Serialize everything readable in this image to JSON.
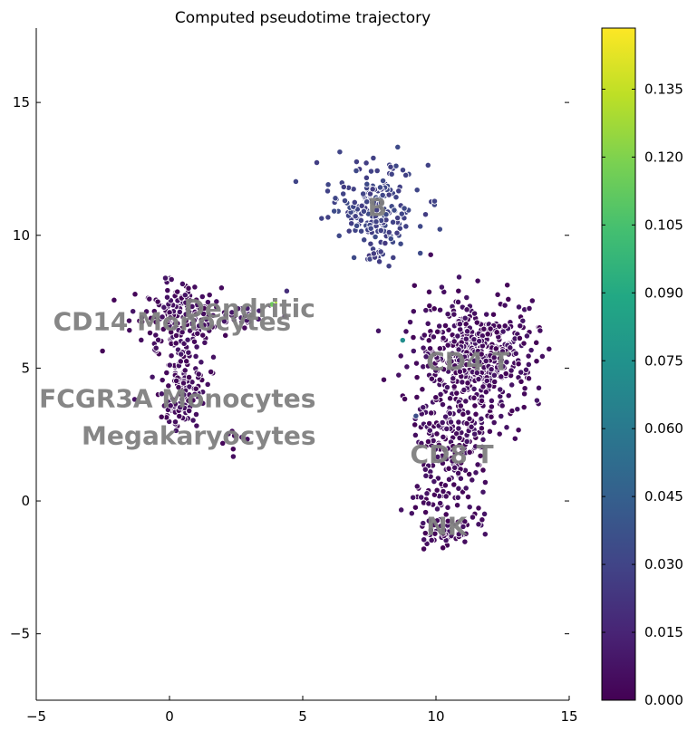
{
  "chart_data": {
    "type": "scatter",
    "title": "Computed pseudotime trajectory",
    "xlabel": "",
    "ylabel": "",
    "xlim": [
      -5,
      15
    ],
    "ylim": [
      -7.5,
      17.8
    ],
    "x_ticks": [
      -5,
      0,
      5,
      10,
      15
    ],
    "x_tick_labels": [
      "−5",
      "0",
      "5",
      "10",
      "15"
    ],
    "y_ticks": [
      -5,
      0,
      5,
      10,
      15
    ],
    "y_tick_labels": [
      "−5",
      "0",
      "5",
      "10",
      "15"
    ],
    "grid": false,
    "colormap": "viridis",
    "colorbar": {
      "min": 0.0,
      "max": 0.1485,
      "ticks": [
        0.0,
        0.015,
        0.03,
        0.045,
        0.06,
        0.075,
        0.09,
        0.105,
        0.12,
        0.135
      ],
      "tick_labels": [
        "0.000",
        "0.015",
        "0.030",
        "0.045",
        "0.060",
        "0.075",
        "0.090",
        "0.105",
        "0.120",
        "0.135"
      ]
    },
    "point_edge_color": "#ffffff",
    "label_color": "#7f7f7f",
    "cluster_labels": [
      {
        "text": "B",
        "x": 7.8,
        "y": 11.0
      },
      {
        "text": "Dendritic",
        "x": 3.0,
        "y": 7.2
      },
      {
        "text": "CD14 Monocytes",
        "x": 0.1,
        "y": 6.7
      },
      {
        "text": "CD4 T",
        "x": 11.2,
        "y": 5.2
      },
      {
        "text": "FCGR3A Monocytes",
        "x": 0.3,
        "y": 3.8
      },
      {
        "text": "Megakaryocytes",
        "x": 1.1,
        "y": 2.4
      },
      {
        "text": "CD8 T",
        "x": 10.6,
        "y": 1.7
      },
      {
        "text": "NK",
        "x": 10.4,
        "y": -1.0
      }
    ],
    "series": [
      {
        "x": 7.7,
        "y": 11.1,
        "sx": 0.85,
        "sy": 0.8,
        "count": 190,
        "value": 0.03,
        "value_spread": 0.004
      },
      {
        "x": 7.8,
        "y": 9.6,
        "sx": 0.25,
        "sy": 0.6,
        "count": 20,
        "value": 0.028,
        "value_spread": 0.004
      },
      {
        "x": 0.2,
        "y": 6.8,
        "sx": 0.8,
        "sy": 0.75,
        "count": 180,
        "value": 0.005,
        "value_spread": 0.004
      },
      {
        "x": 0.5,
        "y": 4.5,
        "sx": 0.45,
        "sy": 0.8,
        "count": 90,
        "value": 0.005,
        "value_spread": 0.004
      },
      {
        "x": 0.3,
        "y": 3.4,
        "sx": 0.35,
        "sy": 0.25,
        "count": 35,
        "value": 0.005,
        "value_spread": 0.004
      },
      {
        "x": 2.8,
        "y": 7.0,
        "sx": 0.55,
        "sy": 0.2,
        "count": 25,
        "value": 0.008,
        "value_spread": 0.004
      },
      {
        "x": 2.4,
        "y": 2.4,
        "sx": 0.25,
        "sy": 0.25,
        "count": 10,
        "value": 0.004,
        "value_spread": 0.002
      },
      {
        "x": 11.5,
        "y": 5.4,
        "sx": 1.1,
        "sy": 1.1,
        "count": 520,
        "value": 0.005,
        "value_spread": 0.004
      },
      {
        "x": 10.6,
        "y": 2.2,
        "sx": 0.75,
        "sy": 0.7,
        "count": 140,
        "value": 0.005,
        "value_spread": 0.004
      },
      {
        "x": 10.2,
        "y": 0.3,
        "sx": 0.5,
        "sy": 0.55,
        "count": 55,
        "value": 0.005,
        "value_spread": 0.004
      },
      {
        "x": 10.5,
        "y": -1.1,
        "sx": 0.6,
        "sy": 0.35,
        "count": 70,
        "value": 0.005,
        "value_spread": 0.004
      }
    ],
    "special_points": [
      {
        "x": 3.95,
        "y": 7.45,
        "value": 0.128
      },
      {
        "x": 3.85,
        "y": 7.4,
        "value": 0.115
      },
      {
        "x": 8.75,
        "y": 6.05,
        "value": 0.072
      },
      {
        "x": 9.25,
        "y": 3.2,
        "value": 0.035
      },
      {
        "x": 4.4,
        "y": 7.9,
        "value": 0.02
      }
    ]
  }
}
